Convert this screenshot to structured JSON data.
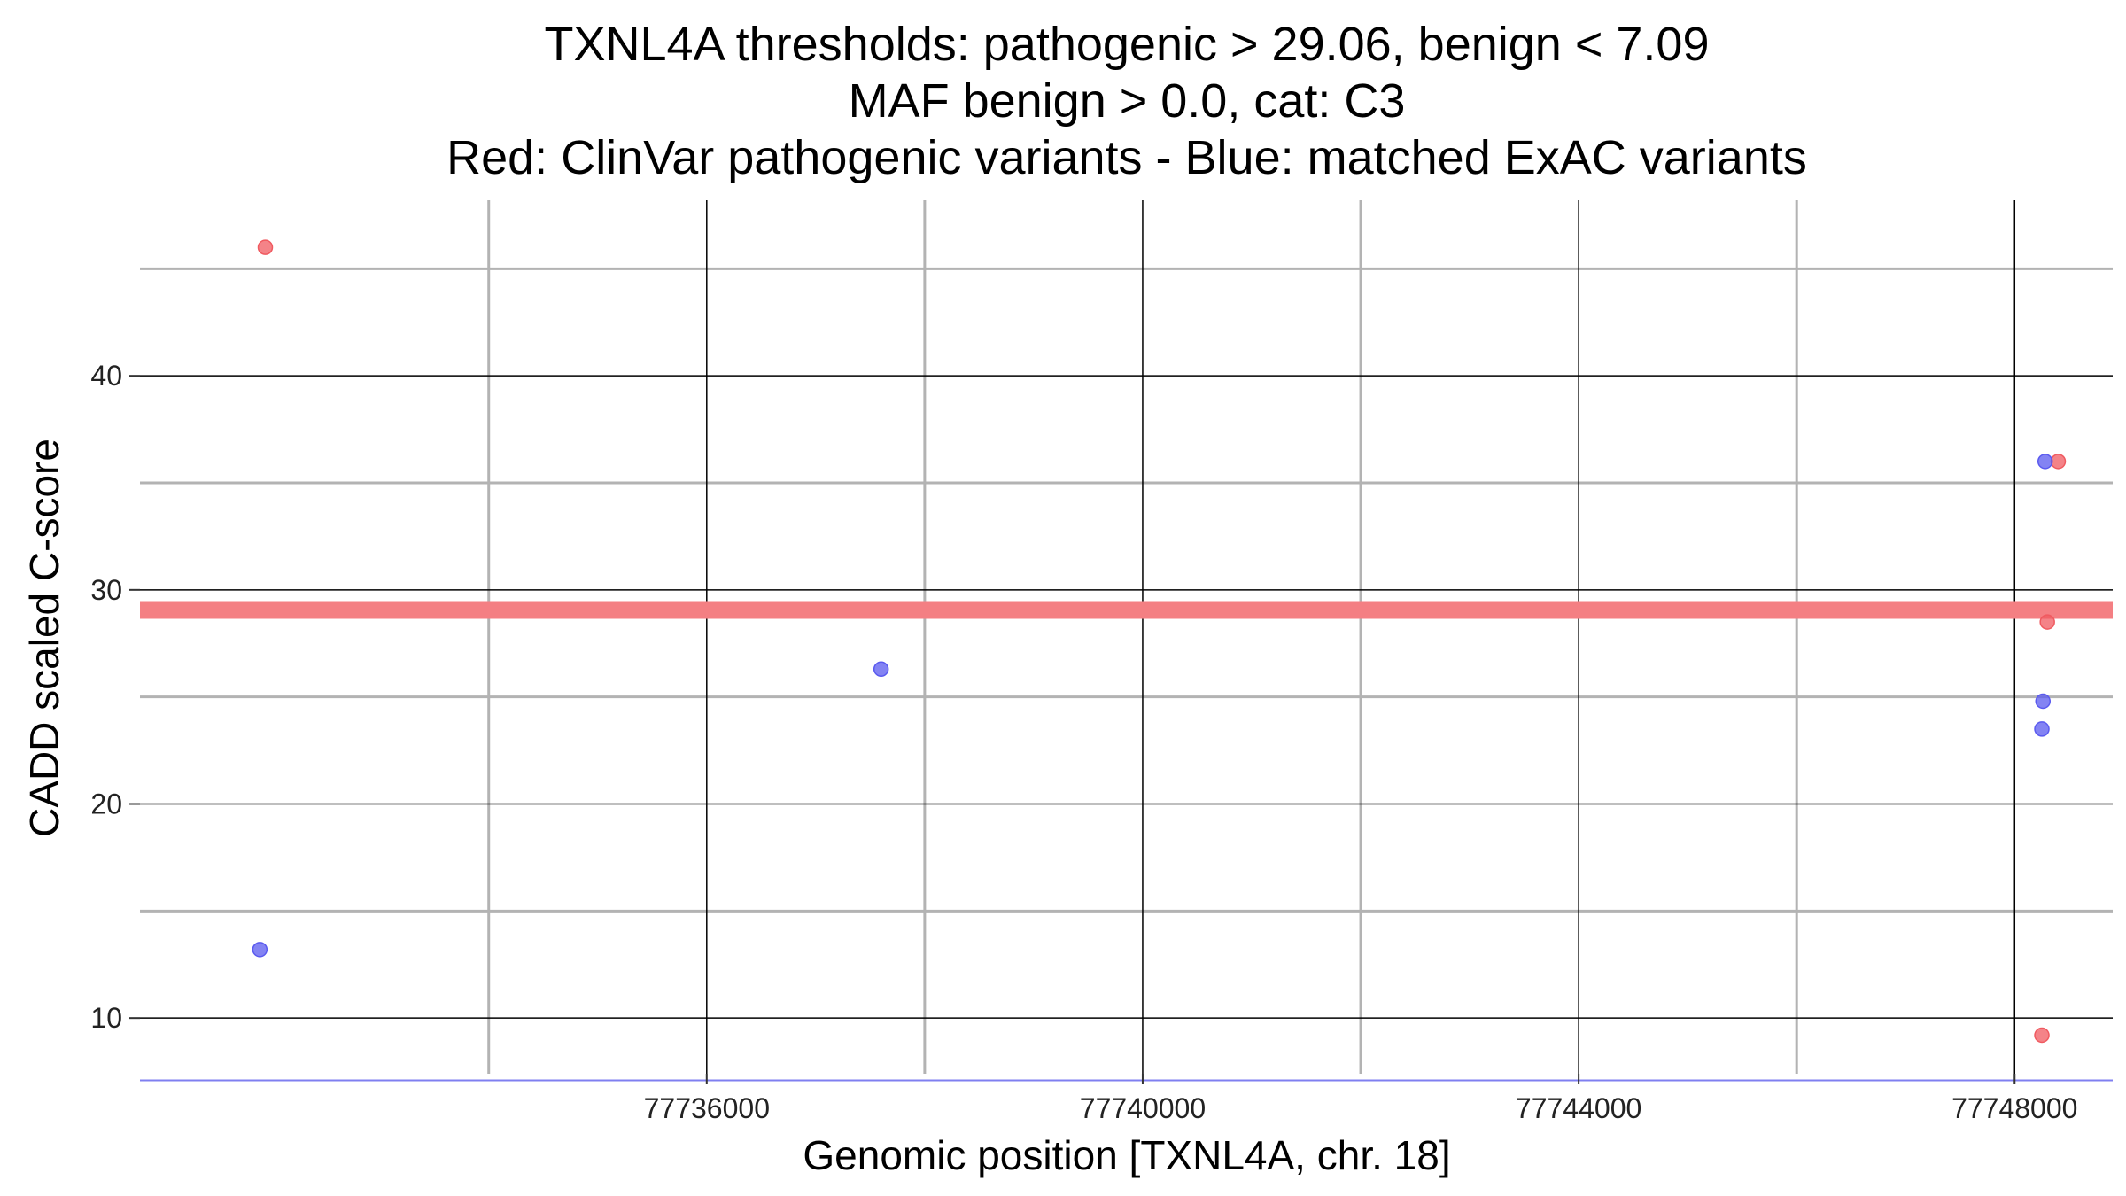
{
  "chart_data": {
    "type": "scatter",
    "title_lines": [
      "TXNL4A thresholds: pathogenic > 29.06, benign < 7.09",
      "MAF benign > 0.0, cat: C3",
      "Red: ClinVar pathogenic variants - Blue: matched ExAC variants"
    ],
    "xlabel": "Genomic position [TXNL4A, chr. 18]",
    "ylabel": "CADD scaled C-score",
    "xlim": [
      77730800,
      77748900
    ],
    "ylim": [
      7.4,
      48.2
    ],
    "x_ticks": [
      77736000,
      77740000,
      77744000,
      77748000
    ],
    "x_tick_labels": [
      "77736000",
      "77740000",
      "77744000",
      "77748000"
    ],
    "x_minor_gridlines": [
      77734000,
      77738000,
      77742000,
      77746000
    ],
    "y_ticks": [
      10,
      20,
      30,
      40
    ],
    "y_tick_labels": [
      "10",
      "20",
      "30",
      "40"
    ],
    "y_minor_gridlines": [
      15,
      25,
      35,
      45
    ],
    "grid": true,
    "thresholds": [
      {
        "kind": "pathogenic",
        "value": 29.06,
        "color": "#f47f83"
      },
      {
        "kind": "benign",
        "value": 7.09,
        "color": "#7f7ff0"
      }
    ],
    "series": [
      {
        "color": "#f05a60",
        "points": [
          {
            "x": 77731950,
            "y": 46.0
          },
          {
            "x": 77748400,
            "y": 36.0
          },
          {
            "x": 77748300,
            "y": 28.5
          },
          {
            "x": 77748250,
            "y": 9.2
          }
        ]
      },
      {
        "color": "#5a5aef",
        "points": [
          {
            "x": 77731900,
            "y": 13.2
          },
          {
            "x": 77737600,
            "y": 26.3
          },
          {
            "x": 77748280,
            "y": 36.0
          },
          {
            "x": 77748260,
            "y": 24.8
          },
          {
            "x": 77748250,
            "y": 23.5
          }
        ]
      }
    ]
  }
}
